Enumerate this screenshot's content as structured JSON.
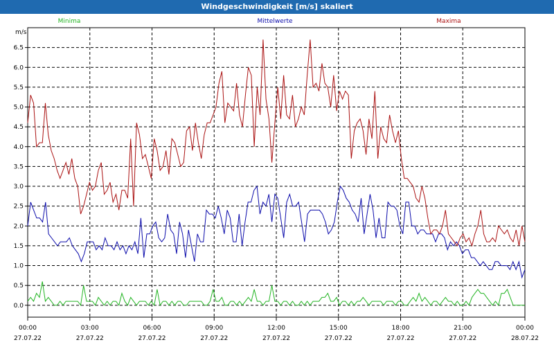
{
  "window": {
    "title": "Windgeschwindigkeit [m/s] skaliert"
  },
  "colors": {
    "titlebar": "#1f6ab0",
    "minima": "#22b422",
    "mittelwerte": "#0a0aaa",
    "maxima": "#aa1010",
    "grid": "#000000"
  },
  "chart_data": {
    "type": "line",
    "title": "Windgeschwindigkeit [m/s] skaliert",
    "ylabel": "m/s",
    "ylim": [
      -0.3,
      7.0
    ],
    "xlim": [
      0,
      24
    ],
    "yticks": [
      "0.0",
      "0.5",
      "1.0",
      "1.5",
      "2.0",
      "2.5",
      "3.0",
      "3.5",
      "4.0",
      "4.5",
      "5.0",
      "5.5",
      "6.0",
      "6.5"
    ],
    "xticks": [
      {
        "time": "00:00",
        "date": "27.07.22"
      },
      {
        "time": "03:00",
        "date": "27.07.22"
      },
      {
        "time": "06:00",
        "date": "27.07.22"
      },
      {
        "time": "09:00",
        "date": "27.07.22"
      },
      {
        "time": "12:00",
        "date": "27.07.22"
      },
      {
        "time": "15:00",
        "date": "27.07.22"
      },
      {
        "time": "18:00",
        "date": "27.07.22"
      },
      {
        "time": "21:00",
        "date": "27.07.22"
      },
      {
        "time": "00:00",
        "date": "28.07.22"
      }
    ],
    "grid": true,
    "legend_position": "top",
    "series": [
      {
        "name": "Minima",
        "color": "#22b422",
        "values": [
          0.1,
          0.2,
          0.1,
          0.3,
          0.2,
          0.6,
          0.1,
          0.2,
          0.1,
          0.0,
          0.0,
          0.1,
          0.0,
          0.1,
          0.1,
          0.1,
          0.1,
          0.1,
          0.0,
          0.5,
          0.1,
          0.1,
          0.1,
          0.0,
          0.2,
          0.1,
          0.0,
          0.1,
          0.0,
          0.1,
          0.1,
          0.0,
          0.3,
          0.1,
          0.0,
          0.2,
          0.1,
          0.0,
          0.1,
          0.1,
          0.1,
          0.0,
          0.1,
          0.0,
          0.4,
          0.0,
          0.1,
          0.1,
          0.0,
          0.1,
          0.0,
          0.1,
          0.1,
          0.0,
          0.0,
          0.1,
          0.1,
          0.1,
          0.1,
          0.1,
          0.0,
          0.0,
          0.1,
          0.4,
          0.1,
          0.1,
          0.2,
          0.0,
          0.0,
          0.1,
          0.1,
          0.0,
          0.1,
          0.0,
          0.1,
          0.2,
          0.1,
          0.4,
          0.1,
          0.1,
          0.0,
          0.1,
          0.1,
          0.5,
          0.1,
          0.1,
          0.0,
          0.1,
          0.1,
          0.0,
          0.1,
          0.0,
          0.0,
          0.1,
          0.0,
          0.1,
          0.0,
          0.1,
          0.1,
          0.1,
          0.2,
          0.2,
          0.3,
          0.1,
          0.1,
          0.2,
          0.0,
          0.1,
          0.1,
          0.0,
          0.1,
          0.0,
          0.1,
          0.1,
          0.2,
          0.1,
          0.0,
          0.1,
          0.1,
          0.1,
          0.1,
          0.0,
          0.1,
          0.1,
          0.1,
          0.0,
          0.1,
          0.1,
          0.0,
          0.0,
          0.1,
          0.2,
          0.1,
          0.3,
          0.1,
          0.2,
          0.1,
          0.0,
          0.1,
          0.1,
          0.0,
          0.1,
          0.2,
          0.1,
          0.1,
          0.0,
          0.1,
          0.0,
          0.0,
          0.1,
          0.0,
          0.2,
          0.3,
          0.4,
          0.3,
          0.3,
          0.2,
          0.1,
          0.0,
          0.1,
          0.0,
          0.3,
          0.3,
          0.4,
          0.2,
          0.0,
          0.0,
          0.0,
          0.0,
          0.0
        ]
      },
      {
        "name": "Mittelwerte",
        "color": "#0a0aaa",
        "values": [
          2.0,
          2.6,
          2.4,
          2.2,
          2.2,
          2.1,
          2.6,
          1.8,
          1.7,
          1.6,
          1.5,
          1.6,
          1.6,
          1.6,
          1.7,
          1.5,
          1.4,
          1.3,
          1.1,
          1.3,
          1.6,
          1.6,
          1.6,
          1.4,
          1.5,
          1.4,
          1.7,
          1.5,
          1.5,
          1.4,
          1.6,
          1.4,
          1.5,
          1.3,
          1.5,
          1.4,
          1.6,
          1.3,
          2.2,
          1.2,
          1.8,
          1.8,
          2.0,
          2.1,
          1.7,
          1.6,
          1.7,
          2.3,
          1.9,
          1.8,
          1.3,
          2.1,
          1.8,
          1.2,
          1.9,
          1.5,
          1.1,
          1.8,
          1.6,
          1.6,
          2.4,
          2.3,
          2.3,
          2.2,
          2.5,
          2.2,
          1.8,
          2.4,
          2.2,
          1.6,
          1.6,
          2.3,
          1.5,
          2.1,
          2.6,
          2.6,
          2.9,
          3.0,
          2.3,
          2.6,
          2.5,
          2.8,
          2.1,
          2.8,
          2.7,
          2.2,
          1.7,
          2.6,
          2.8,
          2.5,
          2.5,
          2.6,
          2.1,
          1.6,
          2.3,
          2.4,
          2.4,
          2.4,
          2.4,
          2.3,
          2.1,
          1.8,
          1.9,
          2.1,
          2.6,
          3.0,
          2.9,
          2.7,
          2.6,
          2.4,
          2.3,
          2.1,
          2.7,
          1.8,
          2.3,
          2.8,
          2.4,
          1.7,
          2.2,
          1.7,
          1.7,
          2.6,
          2.5,
          2.5,
          2.4,
          2.0,
          1.8,
          2.6,
          2.6,
          2.0,
          2.0,
          1.8,
          1.9,
          1.9,
          1.8,
          1.8,
          1.8,
          1.6,
          1.8,
          1.8,
          1.7,
          1.4,
          1.6,
          1.5,
          1.6,
          1.5,
          1.3,
          1.4,
          1.4,
          1.2,
          1.2,
          1.1,
          1.0,
          1.1,
          1.0,
          0.9,
          0.9,
          1.1,
          1.1,
          1.0,
          1.0,
          1.0,
          0.9,
          1.1,
          0.9,
          1.1,
          0.7,
          0.9
        ]
      },
      {
        "name": "Maxima",
        "color": "#aa1010",
        "values": [
          4.6,
          5.3,
          5.1,
          4.0,
          4.1,
          4.1,
          5.1,
          4.3,
          3.9,
          3.7,
          3.4,
          3.2,
          3.4,
          3.6,
          3.3,
          3.7,
          3.2,
          3.0,
          2.3,
          2.5,
          2.8,
          3.1,
          2.9,
          3.0,
          3.4,
          3.6,
          2.8,
          2.9,
          3.1,
          2.6,
          2.8,
          2.4,
          2.9,
          2.9,
          2.7,
          4.2,
          2.5,
          4.6,
          4.3,
          3.7,
          3.8,
          3.5,
          3.2,
          4.2,
          3.9,
          3.4,
          3.5,
          3.9,
          3.3,
          4.2,
          4.1,
          3.8,
          3.5,
          3.6,
          4.4,
          4.5,
          3.9,
          4.6,
          4.1,
          3.7,
          4.3,
          4.6,
          4.6,
          4.8,
          5.0,
          5.6,
          5.9,
          4.6,
          5.1,
          5.0,
          4.9,
          5.6,
          4.8,
          4.5,
          5.3,
          6.0,
          5.8,
          4.0,
          5.5,
          4.8,
          6.7,
          5.2,
          4.7,
          3.6,
          4.6,
          5.5,
          4.7,
          5.8,
          4.8,
          4.7,
          5.3,
          4.5,
          4.7,
          5.0,
          4.8,
          5.8,
          6.7,
          5.5,
          5.6,
          5.4,
          6.1,
          5.6,
          5.5,
          5.0,
          5.8,
          4.9,
          5.4,
          5.2,
          5.4,
          5.3,
          3.7,
          4.4,
          4.6,
          4.7,
          4.4,
          3.8,
          4.7,
          4.2,
          5.4,
          3.7,
          4.5,
          4.2,
          4.1,
          4.8,
          4.4,
          4.1,
          4.4,
          3.7,
          3.2,
          3.2,
          3.1,
          3.0,
          2.7,
          2.6,
          3.0,
          2.7,
          2.2,
          1.8,
          1.9,
          1.9,
          1.8,
          2.0,
          2.4,
          1.8,
          1.7,
          1.6,
          1.5,
          1.7,
          1.8,
          1.6,
          1.7,
          1.5,
          1.8,
          2.0,
          2.4,
          1.8,
          1.6,
          1.6,
          1.7,
          1.6,
          2.0,
          1.9,
          1.8,
          1.9,
          1.7,
          1.6,
          1.9,
          1.5,
          2.0,
          1.6
        ]
      }
    ]
  }
}
